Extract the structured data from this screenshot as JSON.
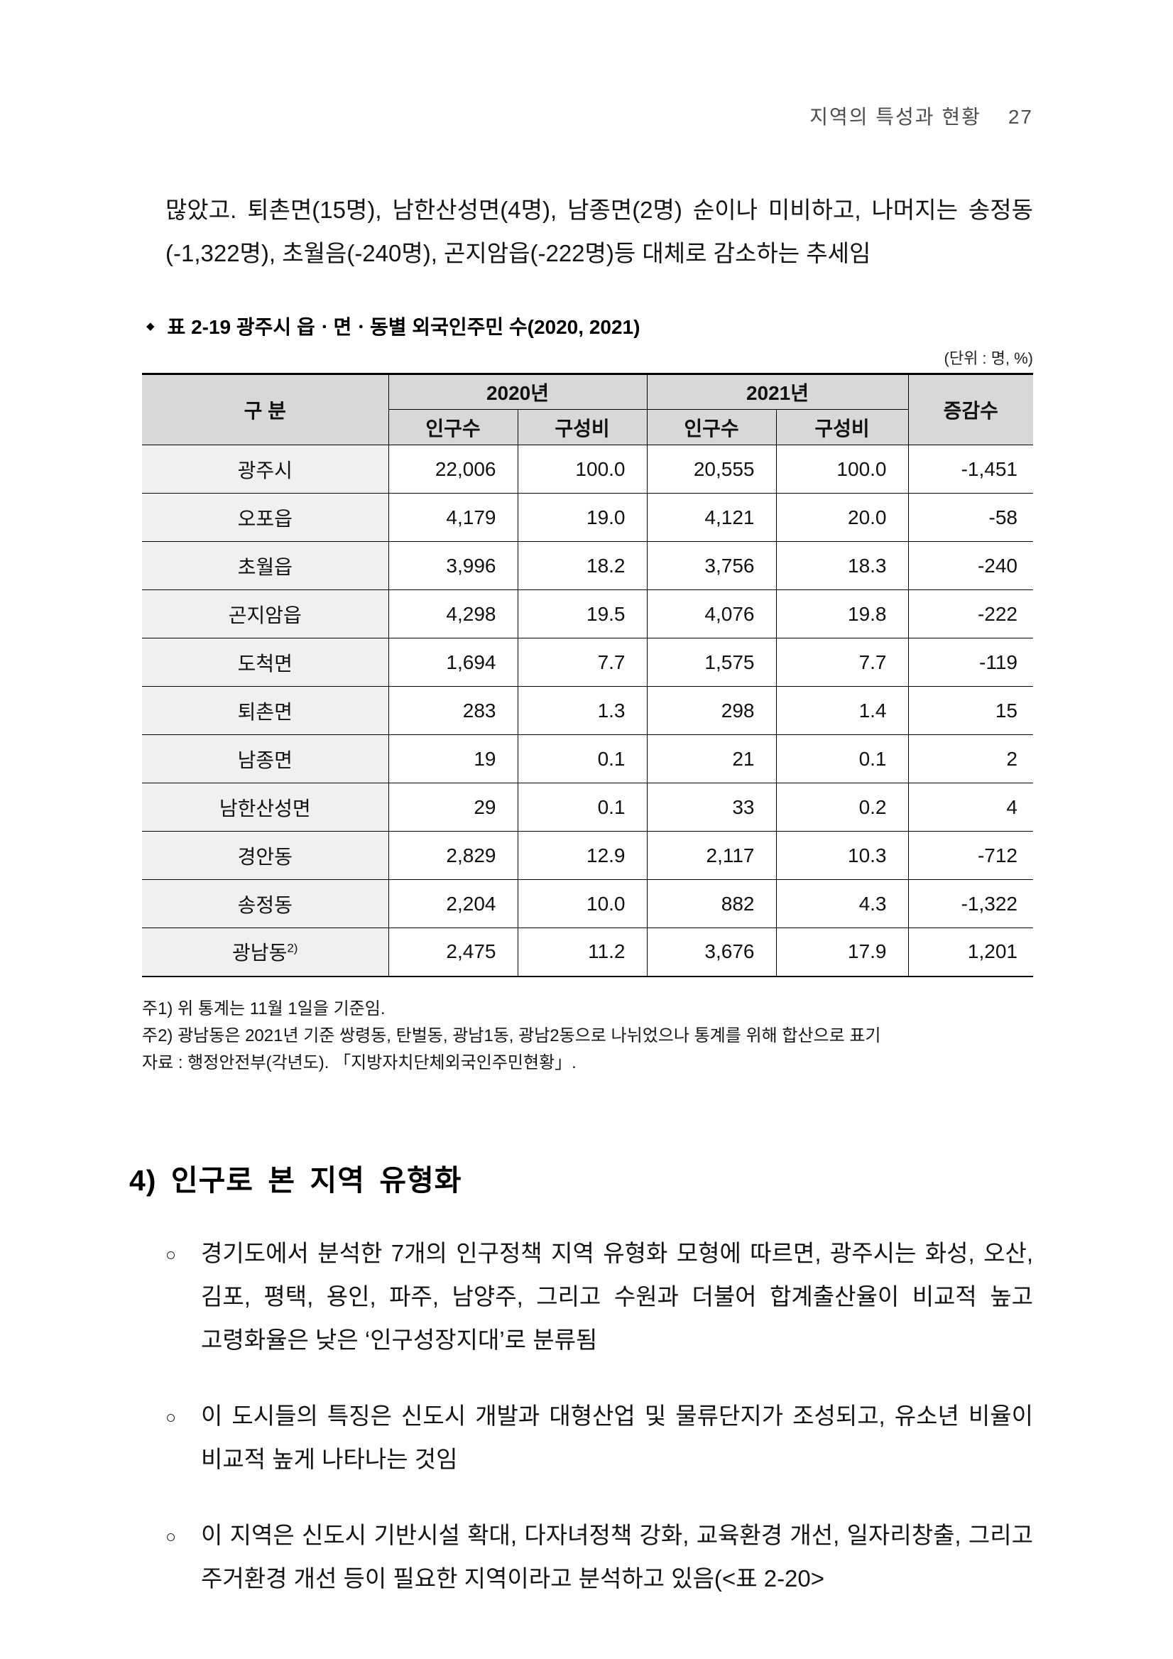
{
  "running_head": {
    "title": "지역의 특성과 현황",
    "page_number": "27"
  },
  "intro_paragraph": "많았고. 퇴촌면(15명), 남한산성면(4명), 남종면(2명) 순이나 미비하고, 나머지는 송정동(-1,322명), 초월음(-240명), 곤지암읍(-222명)등 대체로 감소하는 추세임",
  "table": {
    "title_bullet": "◆",
    "title": "표 2-19 광주시 읍ㆍ면ㆍ동별 외국인주민 수(2020, 2021)",
    "unit_label": "(단위 : 명, %)",
    "header": {
      "col_category": "구 분",
      "group_2020": "2020년",
      "group_2021": "2021년",
      "col_diff": "증감수",
      "sub_count": "인구수",
      "sub_ratio": "구성비"
    },
    "rows": [
      {
        "label": "광주시",
        "sup": "",
        "cells": [
          "22,006",
          "100.0",
          "20,555",
          "100.0",
          "-1,451"
        ]
      },
      {
        "label": "오포읍",
        "sup": "",
        "cells": [
          "4,179",
          "19.0",
          "4,121",
          "20.0",
          "-58"
        ]
      },
      {
        "label": "초월읍",
        "sup": "",
        "cells": [
          "3,996",
          "18.2",
          "3,756",
          "18.3",
          "-240"
        ]
      },
      {
        "label": "곤지암읍",
        "sup": "",
        "cells": [
          "4,298",
          "19.5",
          "4,076",
          "19.8",
          "-222"
        ]
      },
      {
        "label": "도척면",
        "sup": "",
        "cells": [
          "1,694",
          "7.7",
          "1,575",
          "7.7",
          "-119"
        ]
      },
      {
        "label": "퇴촌면",
        "sup": "",
        "cells": [
          "283",
          "1.3",
          "298",
          "1.4",
          "15"
        ]
      },
      {
        "label": "남종면",
        "sup": "",
        "cells": [
          "19",
          "0.1",
          "21",
          "0.1",
          "2"
        ]
      },
      {
        "label": "남한산성면",
        "sup": "",
        "cells": [
          "29",
          "0.1",
          "33",
          "0.2",
          "4"
        ]
      },
      {
        "label": "경안동",
        "sup": "",
        "cells": [
          "2,829",
          "12.9",
          "2,117",
          "10.3",
          "-712"
        ]
      },
      {
        "label": "송정동",
        "sup": "",
        "cells": [
          "2,204",
          "10.0",
          "882",
          "4.3",
          "-1,322"
        ]
      },
      {
        "label": "광남동",
        "sup": "2)",
        "cells": [
          "2,475",
          "11.2",
          "3,676",
          "17.9",
          "1,201"
        ]
      }
    ]
  },
  "notes": [
    "주1) 위 통계는 11월 1일을 기준임.",
    "주2) 광남동은 2021년 기준 쌍령동, 탄벌동, 광남1동, 광남2동으로 나뉘었으나 통계를 위해 합산으로 표기",
    "자료 : 행정안전부(각년도). 「지방자치단체외국인주민현황」."
  ],
  "section_heading": "4) 인구로 본 지역 유형화",
  "bullets": {
    "marker": "○",
    "items": [
      "경기도에서 분석한 7개의 인구정책 지역 유형화 모형에 따르면, 광주시는 화성, 오산, 김포, 평택, 용인, 파주, 남양주, 그리고 수원과 더불어 합계출산율이 비교적 높고 고령화율은 낮은 ‘인구성장지대’로 분류됨",
      "이 도시들의 특징은 신도시 개발과 대형산업 및 물류단지가 조성되고, 유소년 비율이 비교적 높게 나타나는 것임",
      "이 지역은 신도시 기반시설 확대, 다자녀정책 강화, 교육환경 개선, 일자리창출, 그리고 주거환경 개선 등이 필요한 지역이라고 분석하고 있음(<표 2-20>"
    ]
  }
}
